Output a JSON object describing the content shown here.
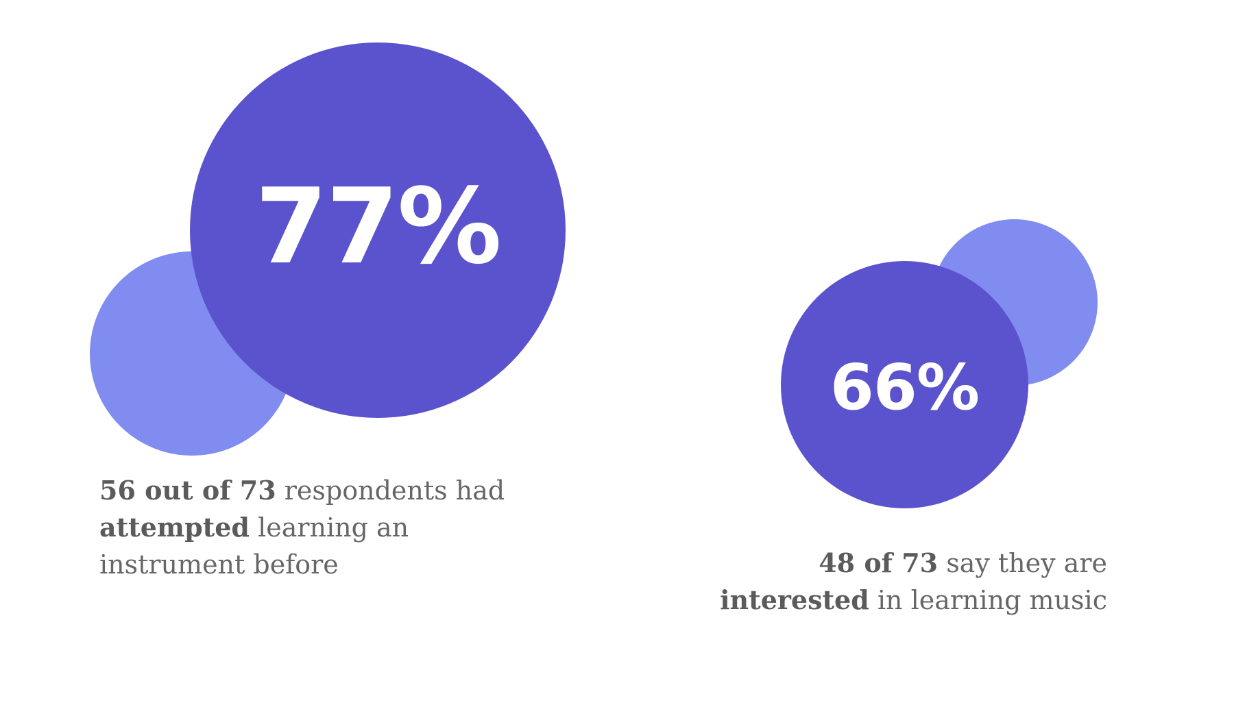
{
  "chart_data": [
    {
      "type": "bubble",
      "value": 77,
      "value_label": "77%",
      "caption": {
        "bold_1": "56 out of 73",
        "text_1": " respondents had",
        "bold_2": "attempted",
        "text_2": " learning an",
        "text_3": "instrument before"
      }
    },
    {
      "type": "bubble",
      "value": 66,
      "value_label": "66%",
      "caption": {
        "bold_1": "48 of 73",
        "text_1": " say they are",
        "bold_2": "interested",
        "text_2": " in learning music"
      }
    }
  ],
  "colors": {
    "primary": "#5b53cd",
    "secondary": "#818cf0",
    "caption_text": "#666666",
    "value_text": "#ffffff"
  }
}
